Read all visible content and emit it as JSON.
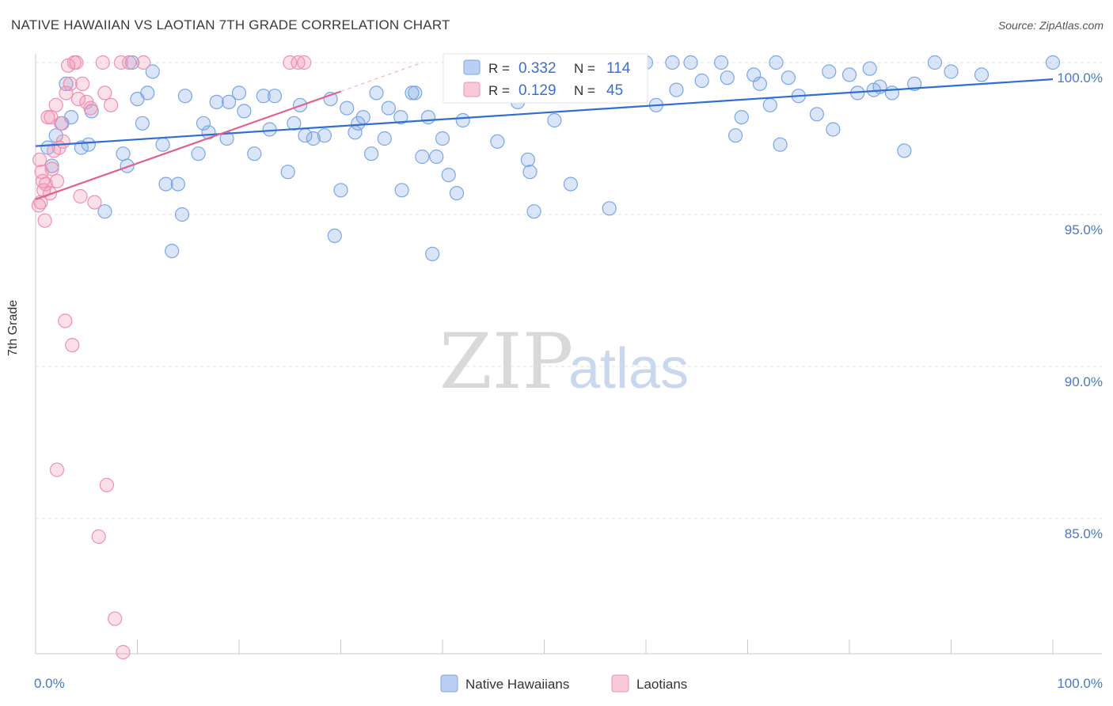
{
  "header": {
    "title": "NATIVE HAWAIIAN VS LAOTIAN 7TH GRADE CORRELATION CHART",
    "source": "Source: ZipAtlas.com"
  },
  "watermark": {
    "zip": "ZIP",
    "atlas": "atlas"
  },
  "stats_legend": {
    "r_label": "R =",
    "n_label": "N =",
    "rows": [
      {
        "series": "Native Hawaiians",
        "r": "0.332",
        "n": "114",
        "color": "#7aa6e6"
      },
      {
        "series": "Laotians",
        "r": "0.129",
        "n": "45",
        "color": "#f08fb0"
      }
    ]
  },
  "chart_data": {
    "type": "scatter",
    "title": "NATIVE HAWAIIAN VS LAOTIAN 7TH GRADE CORRELATION CHART",
    "xlabel": "",
    "ylabel": "7th Grade",
    "xlim": [
      0,
      100
    ],
    "ylim": [
      80.5,
      100.5
    ],
    "x_tick_labels": [
      "0.0%",
      "100.0%"
    ],
    "y_ticks": [
      {
        "value": 100,
        "label": "100.0%"
      },
      {
        "value": 95,
        "label": "95.0%"
      },
      {
        "value": 90,
        "label": "90.0%"
      },
      {
        "value": 85,
        "label": "85.0%"
      }
    ],
    "grid": "horizontal dashed",
    "legend_position": "bottom-center",
    "series": [
      {
        "name": "Native Hawaiians",
        "color": "#7aa6e6",
        "line_color": "#2f6fd1",
        "trend": {
          "x": [
            0,
            100
          ],
          "y": [
            97.25,
            99.45
          ]
        },
        "points": [
          [
            1.2,
            97.2
          ],
          [
            1.6,
            96.6
          ],
          [
            2.0,
            97.6
          ],
          [
            2.6,
            98.0
          ],
          [
            3.0,
            99.3
          ],
          [
            3.5,
            98.2
          ],
          [
            4.5,
            97.2
          ],
          [
            5.2,
            97.3
          ],
          [
            5.5,
            98.4
          ],
          [
            6.8,
            95.1
          ],
          [
            8.6,
            97.0
          ],
          [
            9.0,
            96.6
          ],
          [
            9.5,
            100.0
          ],
          [
            10.0,
            98.8
          ],
          [
            10.5,
            98.0
          ],
          [
            11.0,
            99.0
          ],
          [
            11.5,
            99.7
          ],
          [
            12.5,
            97.3
          ],
          [
            12.8,
            96.0
          ],
          [
            13.4,
            93.8
          ],
          [
            14.0,
            96.0
          ],
          [
            14.4,
            95.0
          ],
          [
            14.7,
            98.9
          ],
          [
            16.0,
            97.0
          ],
          [
            16.5,
            98.0
          ],
          [
            17.0,
            97.7
          ],
          [
            17.8,
            98.7
          ],
          [
            18.8,
            97.5
          ],
          [
            19.0,
            98.7
          ],
          [
            20.0,
            99.0
          ],
          [
            20.5,
            98.4
          ],
          [
            21.5,
            97.0
          ],
          [
            22.4,
            98.9
          ],
          [
            23.0,
            97.8
          ],
          [
            23.5,
            98.9
          ],
          [
            24.8,
            96.4
          ],
          [
            25.4,
            98.0
          ],
          [
            26.0,
            98.6
          ],
          [
            26.5,
            97.6
          ],
          [
            27.3,
            97.5
          ],
          [
            28.4,
            97.6
          ],
          [
            29.0,
            98.8
          ],
          [
            29.4,
            94.3
          ],
          [
            30.0,
            95.8
          ],
          [
            30.6,
            98.5
          ],
          [
            31.4,
            97.7
          ],
          [
            31.7,
            98.0
          ],
          [
            32.2,
            98.2
          ],
          [
            33.0,
            97.0
          ],
          [
            33.5,
            99.0
          ],
          [
            34.3,
            97.5
          ],
          [
            34.7,
            98.5
          ],
          [
            35.9,
            98.2
          ],
          [
            36.0,
            95.8
          ],
          [
            37.0,
            99.0
          ],
          [
            37.3,
            99.0
          ],
          [
            38.0,
            96.9
          ],
          [
            38.6,
            98.2
          ],
          [
            39.0,
            93.7
          ],
          [
            39.4,
            96.9
          ],
          [
            40.0,
            97.5
          ],
          [
            40.6,
            96.3
          ],
          [
            41.4,
            95.7
          ],
          [
            42.0,
            98.1
          ],
          [
            42.5,
            99.4
          ],
          [
            43.4,
            99.1
          ],
          [
            44.0,
            99.1
          ],
          [
            45.4,
            97.4
          ],
          [
            46.6,
            100.0
          ],
          [
            47.4,
            98.7
          ],
          [
            48.6,
            96.4
          ],
          [
            48.4,
            96.8
          ],
          [
            49.0,
            95.1
          ],
          [
            50.3,
            100.0
          ],
          [
            51.0,
            98.1
          ],
          [
            51.6,
            99.0
          ],
          [
            52.6,
            96.0
          ],
          [
            53.4,
            99.6
          ],
          [
            54.0,
            100.0
          ],
          [
            55.6,
            99.3
          ],
          [
            56.4,
            95.2
          ],
          [
            57.4,
            98.9
          ],
          [
            58.0,
            100.0
          ],
          [
            59.0,
            99.7
          ],
          [
            60.0,
            100.0
          ],
          [
            61.0,
            98.6
          ],
          [
            62.6,
            100.0
          ],
          [
            63.0,
            99.1
          ],
          [
            64.4,
            100.0
          ],
          [
            65.5,
            99.4
          ],
          [
            67.4,
            100.0
          ],
          [
            68.0,
            99.5
          ],
          [
            68.8,
            97.6
          ],
          [
            69.4,
            98.2
          ],
          [
            70.6,
            99.6
          ],
          [
            71.2,
            99.3
          ],
          [
            72.2,
            98.6
          ],
          [
            72.8,
            100.0
          ],
          [
            73.2,
            97.3
          ],
          [
            74.0,
            99.5
          ],
          [
            75.0,
            98.9
          ],
          [
            76.8,
            98.3
          ],
          [
            78.0,
            99.7
          ],
          [
            78.4,
            97.8
          ],
          [
            80.0,
            99.6
          ],
          [
            80.8,
            99.0
          ],
          [
            82.0,
            99.8
          ],
          [
            82.4,
            99.1
          ],
          [
            83.0,
            99.2
          ],
          [
            84.2,
            99.0
          ],
          [
            85.4,
            97.1
          ],
          [
            86.4,
            99.3
          ],
          [
            88.4,
            100.0
          ],
          [
            90.0,
            99.7
          ],
          [
            93.0,
            99.6
          ],
          [
            100.0,
            100.0
          ]
        ]
      },
      {
        "name": "Laotians",
        "color": "#f08fb0",
        "line_color": "#e0628c",
        "trend": {
          "x": [
            0,
            30
          ],
          "y": [
            95.5,
            99.05
          ]
        },
        "trend_extension": {
          "x": [
            30,
            38
          ],
          "y": [
            99.05,
            100.0
          ]
        },
        "points": [
          [
            0.3,
            95.3
          ],
          [
            0.4,
            96.8
          ],
          [
            0.5,
            95.4
          ],
          [
            0.6,
            96.4
          ],
          [
            0.7,
            96.1
          ],
          [
            0.8,
            95.8
          ],
          [
            0.9,
            94.8
          ],
          [
            1.0,
            96.0
          ],
          [
            1.2,
            98.2
          ],
          [
            1.4,
            95.7
          ],
          [
            1.6,
            96.5
          ],
          [
            1.8,
            97.1
          ],
          [
            2.0,
            98.6
          ],
          [
            2.1,
            96.1
          ],
          [
            2.3,
            97.2
          ],
          [
            2.5,
            98.0
          ],
          [
            2.7,
            97.4
          ],
          [
            2.9,
            91.5
          ],
          [
            3.0,
            99.0
          ],
          [
            3.2,
            99.9
          ],
          [
            3.4,
            99.3
          ],
          [
            3.6,
            90.7
          ],
          [
            3.8,
            100.0
          ],
          [
            4.0,
            100.0
          ],
          [
            4.2,
            98.8
          ],
          [
            4.4,
            95.6
          ],
          [
            4.6,
            99.3
          ],
          [
            5.0,
            98.7
          ],
          [
            5.4,
            98.5
          ],
          [
            5.8,
            95.4
          ],
          [
            6.2,
            84.4
          ],
          [
            6.6,
            100.0
          ],
          [
            6.8,
            99.0
          ],
          [
            7.0,
            86.1
          ],
          [
            7.4,
            98.6
          ],
          [
            7.8,
            81.7
          ],
          [
            8.4,
            100.0
          ],
          [
            8.6,
            80.6
          ],
          [
            9.2,
            100.0
          ],
          [
            10.6,
            100.0
          ],
          [
            2.1,
            86.6
          ],
          [
            1.5,
            98.2
          ],
          [
            25.0,
            100.0
          ],
          [
            25.8,
            100.0
          ],
          [
            26.4,
            100.0
          ]
        ]
      }
    ]
  }
}
